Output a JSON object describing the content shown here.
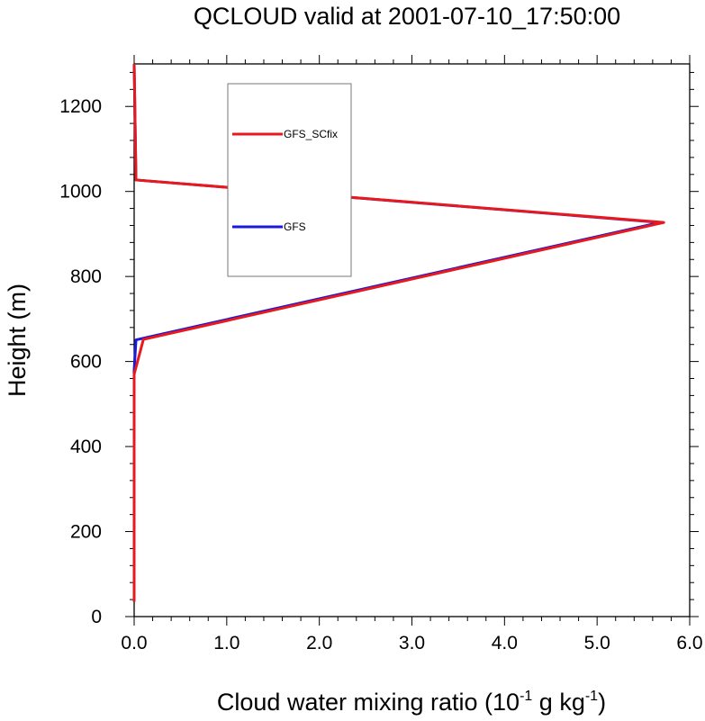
{
  "chart_data": {
    "type": "line",
    "title": "QCLOUD valid at 2001-07-10_17:50:00",
    "xlabel": "Cloud water mixing ratio (10",
    "xlabel_exp1": "-1",
    "xlabel_mid": " g kg",
    "xlabel_exp2": "-1",
    "xlabel_end": ")",
    "ylabel": "Height (m)",
    "xlim": [
      0,
      6
    ],
    "ylim": [
      0,
      1300
    ],
    "xticks": [
      0,
      1,
      2,
      3,
      4,
      5,
      6
    ],
    "xtick_labels": [
      "0.0",
      "1.0",
      "2.0",
      "3.0",
      "4.0",
      "5.0",
      "6.0"
    ],
    "yticks": [
      0,
      200,
      400,
      600,
      800,
      1000,
      1200
    ],
    "ytick_labels": [
      "0",
      "200",
      "400",
      "600",
      "800",
      "1000",
      "1200"
    ],
    "grid": false,
    "legend_position": "top-left inside",
    "series": [
      {
        "name": "GFS_SCfix",
        "color": "#e8191c",
        "x": [
          0.0,
          0.0,
          0.0,
          0.1,
          5.72,
          0.02,
          0.0
        ],
        "y": [
          35,
          400,
          570,
          652,
          927,
          1027,
          1300
        ]
      },
      {
        "name": "GFS",
        "color": "#1a1ad9",
        "x": [
          0.0,
          0.0,
          0.0,
          0.02,
          5.68,
          0.02,
          0.0
        ],
        "y": [
          35,
          400,
          580,
          651,
          927,
          1027,
          1300
        ]
      }
    ]
  }
}
